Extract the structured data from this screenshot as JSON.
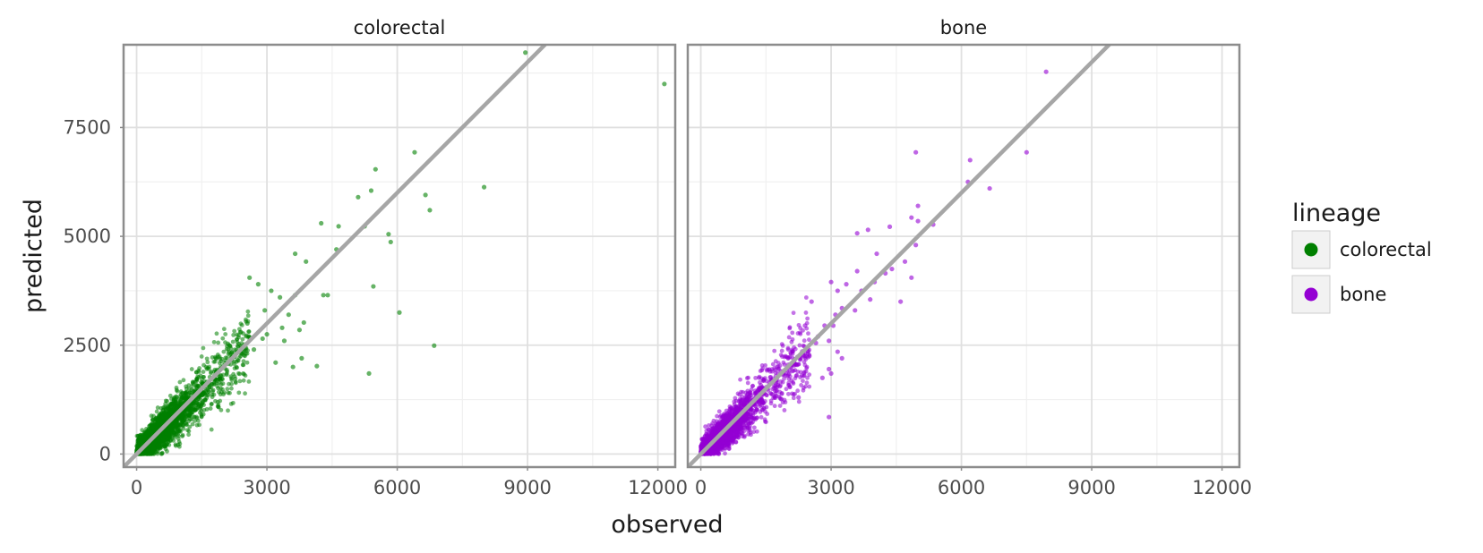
{
  "chart_data": {
    "type": "scatter",
    "xlabel": "observed",
    "ylabel": "predicted",
    "xlim": [
      -300,
      12400
    ],
    "ylim": [
      -300,
      9400
    ],
    "x_ticks": [
      0,
      3000,
      6000,
      9000,
      12000
    ],
    "y_ticks": [
      0,
      2500,
      5000,
      7500
    ],
    "x_tick_labels": [
      "0",
      "3000",
      "6000",
      "9000",
      "12000"
    ],
    "y_tick_labels": [
      "0",
      "2500",
      "5000",
      "7500"
    ],
    "grid": true,
    "reference_line": "y = x",
    "legend": {
      "title": "lineage",
      "placement": "right",
      "entries": [
        {
          "label": "colorectal",
          "color": "#008000"
        },
        {
          "label": "bone",
          "color": "#9400d3"
        }
      ]
    },
    "facets": [
      {
        "title": "colorectal",
        "color": "#008000",
        "points": [
          [
            8950,
            9220
          ],
          [
            12150,
            8500
          ],
          [
            6400,
            6930
          ],
          [
            8000,
            6130
          ],
          [
            5500,
            6540
          ],
          [
            6650,
            5950
          ],
          [
            5400,
            6050
          ],
          [
            5100,
            5900
          ],
          [
            4250,
            5300
          ],
          [
            4650,
            5230
          ],
          [
            5800,
            5050
          ],
          [
            6750,
            5600
          ],
          [
            5250,
            5230
          ],
          [
            3650,
            4600
          ],
          [
            5850,
            4870
          ],
          [
            4600,
            4700
          ],
          [
            5450,
            3850
          ],
          [
            3900,
            4420
          ],
          [
            4300,
            3650
          ],
          [
            4400,
            3650
          ],
          [
            6050,
            3250
          ],
          [
            6850,
            2490
          ],
          [
            5350,
            1850
          ],
          [
            3850,
            3020
          ],
          [
            3750,
            2850
          ],
          [
            3500,
            3200
          ],
          [
            3300,
            3600
          ],
          [
            3100,
            3750
          ],
          [
            2600,
            4050
          ],
          [
            2800,
            3900
          ],
          [
            4150,
            2020
          ],
          [
            3800,
            2200
          ],
          [
            3600,
            2000
          ],
          [
            3400,
            2600
          ],
          [
            3200,
            2100
          ],
          [
            3000,
            2750
          ],
          [
            2950,
            3300
          ],
          [
            2700,
            2400
          ],
          [
            2550,
            3000
          ],
          [
            2400,
            2800
          ],
          [
            3650,
            3650
          ],
          [
            2900,
            2650
          ],
          [
            3350,
            2900
          ]
        ],
        "cloud": {
          "count": 2600,
          "x_max": 2600,
          "center": [
            450,
            520
          ]
        }
      },
      {
        "title": "bone",
        "color": "#9400d3",
        "points": [
          [
            7950,
            8780
          ],
          [
            4950,
            6930
          ],
          [
            7500,
            6930
          ],
          [
            6200,
            6750
          ],
          [
            6150,
            6250
          ],
          [
            6650,
            6100
          ],
          [
            5000,
            5700
          ],
          [
            4850,
            5430
          ],
          [
            5000,
            5350
          ],
          [
            5350,
            5270
          ],
          [
            4350,
            5220
          ],
          [
            3850,
            5150
          ],
          [
            3600,
            5070
          ],
          [
            4950,
            4800
          ],
          [
            4700,
            4420
          ],
          [
            4050,
            4600
          ],
          [
            4400,
            4250
          ],
          [
            4250,
            4150
          ],
          [
            4850,
            4050
          ],
          [
            4000,
            3950
          ],
          [
            3600,
            4200
          ],
          [
            3350,
            3900
          ],
          [
            3150,
            3750
          ],
          [
            3550,
            3300
          ],
          [
            3250,
            3350
          ],
          [
            3100,
            3200
          ],
          [
            3700,
            3750
          ],
          [
            3000,
            3950
          ],
          [
            4600,
            3500
          ],
          [
            3900,
            3550
          ],
          [
            2850,
            2950
          ],
          [
            2550,
            3500
          ],
          [
            2950,
            2600
          ],
          [
            2650,
            2550
          ],
          [
            3150,
            2350
          ],
          [
            3250,
            2200
          ],
          [
            2500,
            2250
          ],
          [
            2950,
            1950
          ],
          [
            3000,
            1850
          ],
          [
            2800,
            1750
          ],
          [
            2950,
            850
          ],
          [
            2250,
            1300
          ],
          [
            2700,
            2700
          ],
          [
            2400,
            2950
          ],
          [
            3050,
            2950
          ]
        ],
        "cloud": {
          "count": 2300,
          "x_max": 2500,
          "center": [
            420,
            450
          ]
        }
      }
    ]
  }
}
